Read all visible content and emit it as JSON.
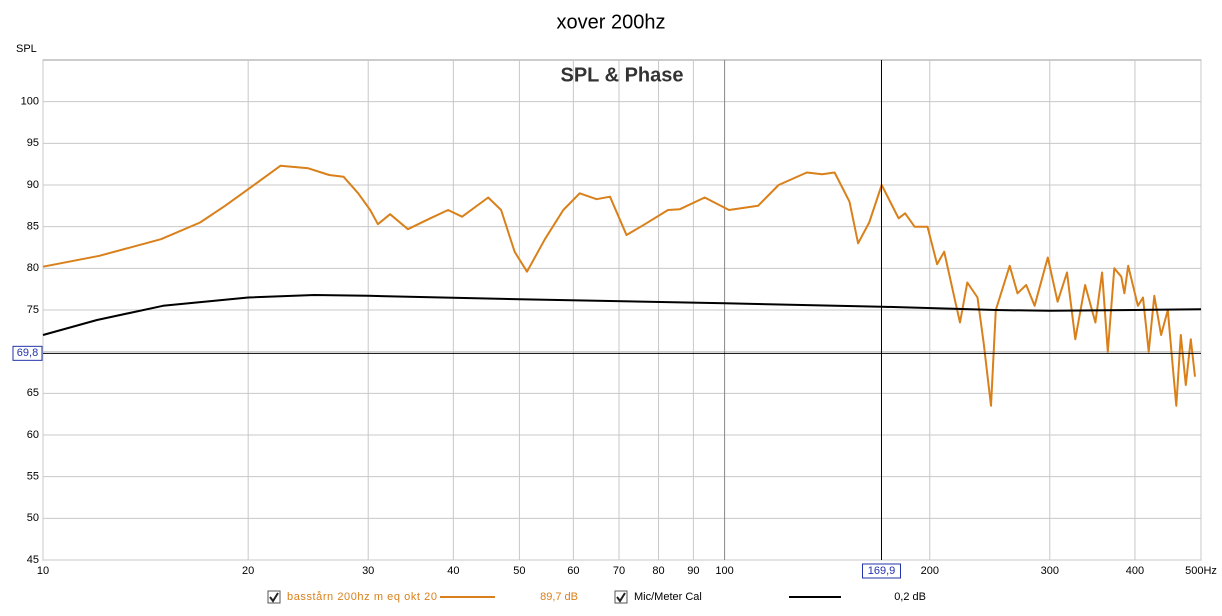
{
  "chart_data": {
    "type": "line",
    "title": "xover 200hz",
    "plot_title": "SPL & Phase",
    "y_label": "SPL",
    "log_x": true,
    "grid": true,
    "xlim": [
      10,
      500
    ],
    "ylim": [
      45,
      105
    ],
    "xticks": [
      10,
      20,
      30,
      40,
      50,
      60,
      70,
      80,
      90,
      100,
      200,
      300,
      400,
      {
        "value": 500,
        "label": "500Hz"
      }
    ],
    "yticks": [
      45,
      50,
      55,
      60,
      65,
      70,
      75,
      80,
      85,
      90,
      95,
      100
    ],
    "cursor": {
      "x": {
        "value": 169.9,
        "label": "169,9"
      },
      "y": {
        "value": 69.8,
        "label": "69,8"
      }
    },
    "series": [
      {
        "name": "basstårn 200hz m eq okt 20",
        "color": "#d9801a",
        "readout": {
          "value": 89.7,
          "label": "89,7 dB"
        },
        "x": [
          10,
          12.1,
          14.9,
          17,
          18.5,
          20,
          22.3,
          24.5,
          26.3,
          27.6,
          29,
          30.2,
          31,
          32.3,
          34.3,
          37,
          39.3,
          41.2,
          45,
          47,
          49.2,
          51.3,
          54.5,
          58,
          61.3,
          64.9,
          67.9,
          71.8,
          76.4,
          82.6,
          86,
          93.5,
          101.5,
          112,
          120,
          132,
          139,
          145,
          152.5,
          157,
          163,
          170,
          180,
          184,
          190,
          198.5,
          205,
          210,
          218,
          221.5,
          227,
          235,
          240,
          246,
          250,
          262,
          269,
          277,
          285,
          298,
          308,
          318,
          327,
          338,
          350,
          358,
          365,
          373,
          382,
          386,
          391,
          404,
          411,
          419,
          427,
          437,
          447,
          453,
          460,
          467,
          475,
          483,
          490
        ],
        "values": [
          80.2,
          81.5,
          83.5,
          85.5,
          87.5,
          89.5,
          92.3,
          92,
          91.2,
          91,
          89,
          87,
          85.3,
          86.5,
          84.7,
          86,
          87,
          86.2,
          88.5,
          87,
          82,
          79.6,
          83.5,
          87,
          89,
          88.3,
          88.6,
          84,
          85.3,
          87,
          87.1,
          88.5,
          87,
          87.5,
          90,
          91.5,
          91.3,
          91.5,
          88,
          83,
          85.5,
          90,
          86,
          86.6,
          85,
          85,
          80.5,
          82,
          76,
          73.5,
          78.3,
          76.5,
          71,
          63.5,
          75,
          80.3,
          77,
          78,
          75.5,
          81.3,
          76,
          79.5,
          71.5,
          78,
          73.5,
          79.5,
          70,
          80,
          79,
          77,
          80.3,
          75.5,
          76.5,
          70,
          76.7,
          72,
          75,
          69.5,
          63.5,
          72,
          66,
          71.5,
          67
        ]
      },
      {
        "name": "Mic/Meter Cal",
        "color": "#000000",
        "readout": {
          "value": 0.2,
          "label": "0,2 dB"
        },
        "x": [
          10,
          12,
          15,
          20,
          25,
          30,
          50,
          100,
          170,
          250,
          300,
          400,
          500
        ],
        "values": [
          72,
          73.8,
          75.5,
          76.5,
          76.8,
          76.7,
          76.3,
          75.8,
          75.4,
          75,
          74.9,
          75,
          75.1
        ]
      }
    ]
  }
}
